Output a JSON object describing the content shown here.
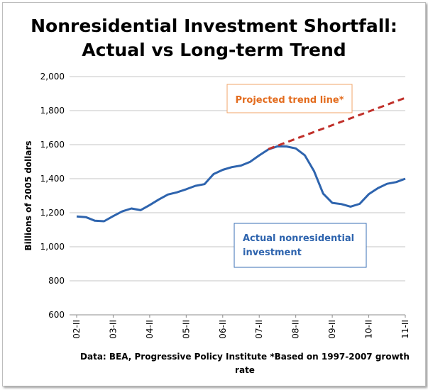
{
  "chart_data": {
    "type": "line",
    "title": [
      "Nonresidential Investment Shortfall:",
      "Actual vs Long-term Trend"
    ],
    "ylabel": "Billions of 2005 dollars",
    "ylim": [
      600,
      2000
    ],
    "yticks": [
      "600",
      "800",
      "1,000",
      "1,200",
      "1,400",
      "1,600",
      "1,800",
      "2,000"
    ],
    "ytick_values": [
      600,
      800,
      1000,
      1200,
      1400,
      1600,
      1800,
      2000
    ],
    "x_labels": [
      "02-II",
      "03-II",
      "04-II",
      "05-II",
      "06-II",
      "07-II",
      "08-II",
      "09-II",
      "10-II",
      "11-II"
    ],
    "grid": "horizontal",
    "series": [
      {
        "label": "Actual  nonresidential investment",
        "label_lines": [
          "Actual  nonresidential",
          "investment"
        ],
        "color": "#2e64ae",
        "style": "solid",
        "values": [
          1178,
          1174,
          1153,
          1150,
          1180,
          1208,
          1225,
          1215,
          1245,
          1278,
          1307,
          1320,
          1338,
          1358,
          1368,
          1427,
          1452,
          1468,
          1477,
          1499,
          1537,
          1572,
          1590,
          1589,
          1578,
          1537,
          1445,
          1312,
          1258,
          1251,
          1236,
          1252,
          1309,
          1344,
          1370,
          1380,
          1400
        ]
      },
      {
        "label": "Projected trend line*",
        "color": "#c0302a",
        "style": "dashed",
        "values_start_index": 21,
        "values": [
          1574,
          1875
        ]
      }
    ],
    "footer": [
      "Data: BEA, Progressive Policy Institute  *Based on 1997-2007 growth",
      "rate"
    ],
    "colors": {
      "actual_label": "#2e64ae",
      "trend_label": "#e36c1e",
      "trend_box_border": "#f1a46a",
      "actual_box_border": "#3a6fb5",
      "grid": "#c6c6c6"
    }
  }
}
